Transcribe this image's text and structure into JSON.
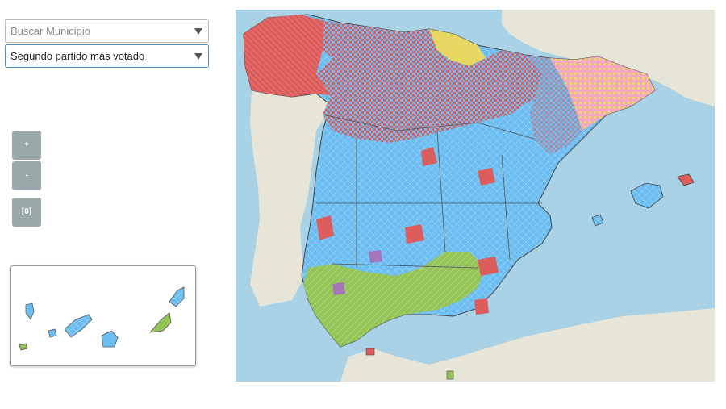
{
  "search": {
    "placeholder": "Buscar Municipio"
  },
  "view_select": {
    "selected": "Segundo partido más votado"
  },
  "zoom": {
    "in_label": "+",
    "out_label": "-",
    "reset_label": "[0]"
  },
  "map": {
    "colors": {
      "sea": "#a9d2e6",
      "land_other": "#e6e5d8",
      "pp": "#6bbdf2",
      "psoe": "#dd5c5c",
      "vox": "#94c356",
      "podemos": "#a674b9",
      "regional": "#f3a7c2",
      "yellow": "#ecd85a",
      "border": "#555555"
    }
  }
}
